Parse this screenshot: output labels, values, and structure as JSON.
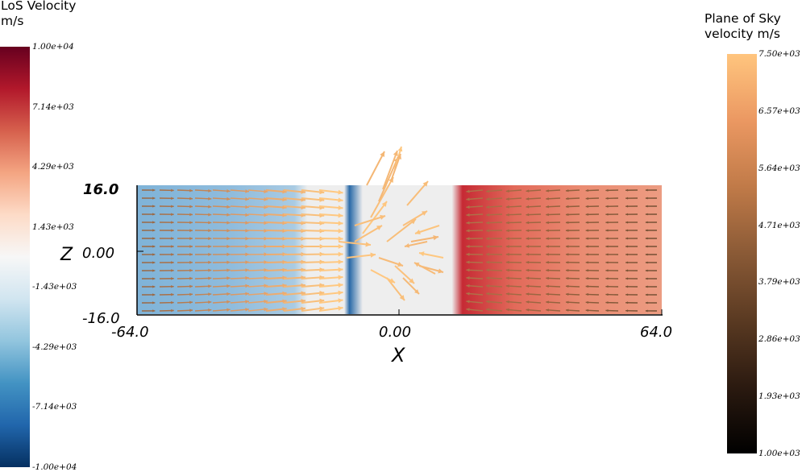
{
  "colors": {
    "los_colormap": [
      "#053061",
      "#2166ac",
      "#4393c3",
      "#92c5de",
      "#d1e5f0",
      "#f7f7f7",
      "#fddbc7",
      "#f4a582",
      "#d6604d",
      "#b2182b",
      "#67001f"
    ],
    "pos_colormap": [
      "#000000",
      "#2b1a10",
      "#5a3a22",
      "#8a5a36",
      "#c07a48",
      "#eb9862",
      "#ffc57e"
    ],
    "plot_background": "#eeeeee"
  },
  "los_colorbar": {
    "title": "LoS Velocity\nm/s",
    "ticks": [
      "1.00e+04",
      "7.14e+03",
      "4.29e+03",
      "1.43e+03",
      "-1.43e+03",
      "-4.29e+03",
      "-7.14e+03",
      "-1.00e+04"
    ]
  },
  "pos_colorbar": {
    "title": "Plane of Sky\nvelocity m/s",
    "ticks": [
      "7.50e+03",
      "6.57e+03",
      "5.64e+03",
      "4.71e+03",
      "3.79e+03",
      "2.86e+03",
      "1.93e+03",
      "1.00e+03"
    ]
  },
  "chart_data": {
    "type": "heatmap",
    "xlabel": "X",
    "ylabel": "Z",
    "x_ticks": [
      "-64.0",
      "0.00",
      "64.0"
    ],
    "y_ticks": [
      "16.0",
      "0.00",
      "-16.0"
    ],
    "xlim": [
      -64,
      64
    ],
    "ylim": [
      -16,
      16
    ],
    "field": "LoS Velocity (m/s)",
    "vector_field": "Plane of Sky velocity (m/s)",
    "los_range": [
      -10000,
      10000
    ],
    "pos_range": [
      1000,
      7500
    ],
    "regions": [
      {
        "x_range": [
          -64,
          -21
        ],
        "los_velocity": -3500
      },
      {
        "x_range": [
          -21,
          15
        ],
        "los_velocity": 0
      },
      {
        "x_range": [
          15,
          64
        ],
        "los_velocity": 5000
      }
    ]
  }
}
